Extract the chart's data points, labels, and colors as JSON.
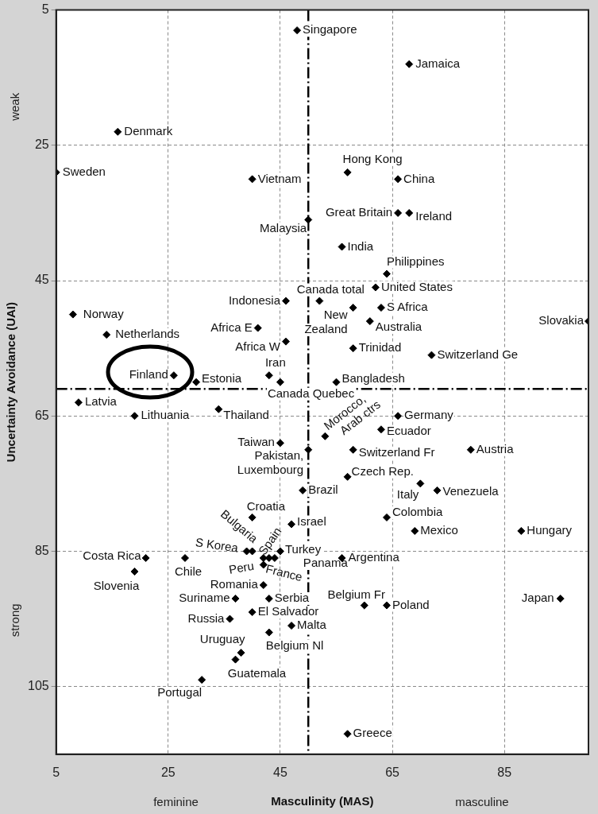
{
  "chart_data": {
    "type": "scatter",
    "xlabel": "Masculinity (MAS)",
    "ylabel": "Uncertainty Avoidance (UAI)",
    "xlim": [
      5,
      100
    ],
    "ylim": [
      115,
      5
    ],
    "xticks": [
      5,
      25,
      45,
      65,
      85
    ],
    "yticks": [
      5,
      25,
      45,
      65,
      85,
      105
    ],
    "grid": true,
    "marker": "diamond",
    "ref_lines": [
      {
        "axis": "x",
        "value": 50,
        "color": "#000000",
        "line_style": "dashed"
      },
      {
        "axis": "y",
        "value": 61,
        "color": "#000000",
        "line_style": "dashed"
      }
    ],
    "series": [
      {
        "color": "#000000",
        "x": [
          48,
          68,
          16,
          5,
          57,
          40,
          66,
          66,
          68,
          50,
          56,
          64,
          62,
          52,
          46,
          63,
          58,
          61,
          8,
          100,
          14,
          41,
          46,
          58,
          72,
          43,
          26,
          30,
          45,
          55,
          9,
          19,
          34,
          66,
          53,
          63,
          45,
          50,
          58,
          79,
          57,
          70,
          73,
          49,
          64,
          40,
          47,
          69,
          88,
          40,
          39,
          42,
          45,
          44,
          43,
          42,
          21,
          28,
          19,
          56,
          42,
          37,
          43,
          40,
          36,
          47,
          43,
          38,
          37,
          31,
          60,
          64,
          95,
          57
        ],
        "values": [
          8,
          13,
          23,
          29,
          29,
          30,
          30,
          35,
          35,
          36,
          40,
          44,
          46,
          48,
          48,
          49,
          49,
          51,
          50,
          51,
          53,
          52,
          54,
          55,
          56,
          59,
          59,
          60,
          60,
          60,
          63,
          65,
          64,
          65,
          68,
          67,
          69,
          70,
          70,
          70,
          74,
          75,
          76,
          76,
          80,
          80,
          81,
          82,
          82,
          85,
          85,
          86,
          85,
          86,
          86,
          87,
          86,
          86,
          88,
          86,
          90,
          92,
          92,
          94,
          95,
          96,
          97,
          100,
          101,
          104,
          93,
          93,
          92,
          112
        ]
      }
    ],
    "annotations": [
      "weak",
      "strong",
      "feminine",
      "masculine",
      {
        "text": "Singapore",
        "x": 48,
        "y": 8
      },
      {
        "text": "Jamaica",
        "x": 68,
        "y": 13
      },
      {
        "text": "Denmark",
        "x": 16,
        "y": 23
      },
      {
        "text": "Sweden",
        "x": 5,
        "y": 29
      },
      {
        "text": "Hong Kong",
        "x": 57,
        "y": 29
      },
      {
        "text": "Vietnam",
        "x": 40,
        "y": 30
      },
      {
        "text": "China",
        "x": 66,
        "y": 30
      },
      {
        "text": "Great Britain",
        "x": 66,
        "y": 35
      },
      {
        "text": "Ireland",
        "x": 68,
        "y": 35
      },
      {
        "text": "Malaysia",
        "x": 50,
        "y": 36
      },
      {
        "text": "India",
        "x": 56,
        "y": 40
      },
      {
        "text": "Philippines",
        "x": 64,
        "y": 44
      },
      {
        "text": "United States",
        "x": 62,
        "y": 46
      },
      {
        "text": "Canada total",
        "x": 52,
        "y": 48
      },
      {
        "text": "Indonesia",
        "x": 46,
        "y": 48
      },
      {
        "text": "S Africa",
        "x": 63,
        "y": 49
      },
      {
        "text": "New Zealand",
        "x": 58,
        "y": 49
      },
      {
        "text": "Australia",
        "x": 61,
        "y": 51
      },
      {
        "text": "Norway",
        "x": 8,
        "y": 50
      },
      {
        "text": "Slovakia",
        "x": 100,
        "y": 51
      },
      {
        "text": "Netherlands",
        "x": 14,
        "y": 53
      },
      {
        "text": "Africa E",
        "x": 41,
        "y": 52
      },
      {
        "text": "Africa W",
        "x": 46,
        "y": 54
      },
      {
        "text": "Trinidad",
        "x": 58,
        "y": 55
      },
      {
        "text": "Switzerland Ge",
        "x": 72,
        "y": 56
      },
      {
        "text": "Iran",
        "x": 43,
        "y": 59
      },
      {
        "text": "Finland",
        "x": 26,
        "y": 59
      },
      {
        "text": "Estonia",
        "x": 30,
        "y": 60
      },
      {
        "text": "Canada Quebec",
        "x": 45,
        "y": 60
      },
      {
        "text": "Bangladesh",
        "x": 55,
        "y": 60
      },
      {
        "text": "Latvia",
        "x": 9,
        "y": 63
      },
      {
        "text": "Lithuania",
        "x": 19,
        "y": 65
      },
      {
        "text": "Thailand",
        "x": 34,
        "y": 64
      },
      {
        "text": "Germany",
        "x": 66,
        "y": 65
      },
      {
        "text": "Morocco, Arab ctrs",
        "x": 53,
        "y": 68
      },
      {
        "text": "Ecuador",
        "x": 63,
        "y": 67
      },
      {
        "text": "Taiwan",
        "x": 45,
        "y": 69
      },
      {
        "text": "Pakistan, Luxembourg",
        "x": 50,
        "y": 70
      },
      {
        "text": "Switzerland Fr",
        "x": 58,
        "y": 70
      },
      {
        "text": "Austria",
        "x": 79,
        "y": 70
      },
      {
        "text": "Czech Rep.",
        "x": 57,
        "y": 74
      },
      {
        "text": "Italy",
        "x": 70,
        "y": 75
      },
      {
        "text": "Venezuela",
        "x": 73,
        "y": 76
      },
      {
        "text": "Brazil",
        "x": 49,
        "y": 76
      },
      {
        "text": "Colombia",
        "x": 64,
        "y": 80
      },
      {
        "text": "Croatia",
        "x": 40,
        "y": 80
      },
      {
        "text": "Israel",
        "x": 47,
        "y": 81
      },
      {
        "text": "Mexico",
        "x": 69,
        "y": 82
      },
      {
        "text": "Hungary",
        "x": 88,
        "y": 82
      },
      {
        "text": "Bulgaria",
        "x": 40,
        "y": 85
      },
      {
        "text": "S Korea",
        "x": 39,
        "y": 85
      },
      {
        "text": "Spain",
        "x": 42,
        "y": 86
      },
      {
        "text": "Turkey",
        "x": 45,
        "y": 85
      },
      {
        "text": "Panama",
        "x": 44,
        "y": 86
      },
      {
        "text": "France",
        "x": 43,
        "y": 86
      },
      {
        "text": "Peru",
        "x": 42,
        "y": 87
      },
      {
        "text": "Costa Rica",
        "x": 21,
        "y": 86
      },
      {
        "text": "Chile",
        "x": 28,
        "y": 86
      },
      {
        "text": "Slovenia",
        "x": 19,
        "y": 88
      },
      {
        "text": "Argentina",
        "x": 56,
        "y": 86
      },
      {
        "text": "Romania",
        "x": 42,
        "y": 90
      },
      {
        "text": "Suriname",
        "x": 37,
        "y": 92
      },
      {
        "text": "Serbia",
        "x": 43,
        "y": 92
      },
      {
        "text": "El Salvador",
        "x": 40,
        "y": 94
      },
      {
        "text": "Russia",
        "x": 36,
        "y": 95
      },
      {
        "text": "Malta",
        "x": 47,
        "y": 96
      },
      {
        "text": "Belgium Nl",
        "x": 43,
        "y": 97
      },
      {
        "text": "Uruguay",
        "x": 38,
        "y": 100
      },
      {
        "text": "Guatemala",
        "x": 37,
        "y": 101
      },
      {
        "text": "Portugal",
        "x": 31,
        "y": 104
      },
      {
        "text": "Belgium Fr",
        "x": 60,
        "y": 93
      },
      {
        "text": "Poland",
        "x": 64,
        "y": 93
      },
      {
        "text": "Japan",
        "x": 95,
        "y": 92
      },
      {
        "text": "Greece",
        "x": 57,
        "y": 112
      }
    ]
  }
}
